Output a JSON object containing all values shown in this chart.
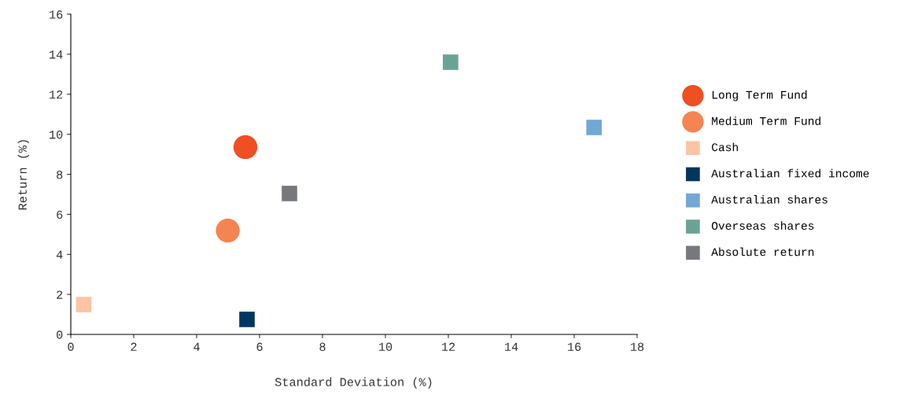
{
  "chart_data": {
    "type": "scatter",
    "xlabel": "Standard Deviation (%)",
    "ylabel": "Return (%)",
    "xlim": [
      0,
      18
    ],
    "ylim": [
      0,
      16
    ],
    "xticks": [
      0,
      2,
      4,
      6,
      8,
      10,
      12,
      14,
      16,
      18
    ],
    "yticks": [
      0,
      2,
      4,
      6,
      8,
      10,
      12,
      14,
      16
    ],
    "grid": false,
    "legend": "right",
    "series": [
      {
        "name": "Long Term Fund",
        "color": "#f04e23",
        "marker": "circle",
        "x": [
          5.55
        ],
        "values": [
          9.36
        ]
      },
      {
        "name": "Medium Term Fund",
        "color": "#f58453",
        "marker": "circle",
        "x": [
          4.99
        ],
        "values": [
          5.19
        ]
      },
      {
        "name": "Cash",
        "color": "#fcc4a4",
        "marker": "square",
        "x": [
          0.41
        ],
        "values": [
          1.49
        ]
      },
      {
        "name": "Australian fixed income",
        "color": "#00365f",
        "marker": "square",
        "x": [
          5.6
        ],
        "values": [
          0.75
        ]
      },
      {
        "name": "Australian shares",
        "color": "#73a7d6",
        "marker": "square",
        "x": [
          16.63
        ],
        "values": [
          10.34
        ]
      },
      {
        "name": "Overseas shares",
        "color": "#6aa396",
        "marker": "square",
        "x": [
          12.07
        ],
        "values": [
          13.6
        ]
      },
      {
        "name": "Absolute return",
        "color": "#77787b",
        "marker": "square",
        "x": [
          6.95
        ],
        "values": [
          7.04
        ]
      }
    ]
  }
}
